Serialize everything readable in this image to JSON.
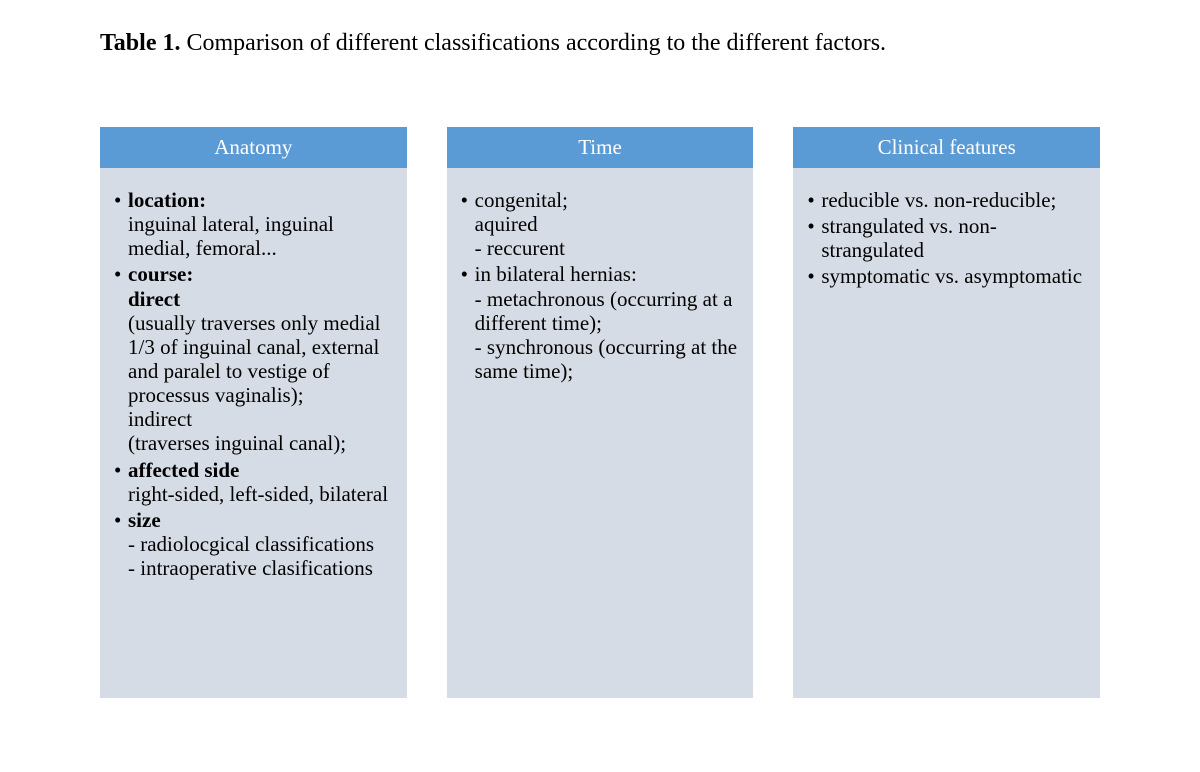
{
  "caption_bold": "Table 1.",
  "caption_rest": " Comparison of different classifications according to the different factors.",
  "header_color": "#5b9bd5",
  "body_color": "#d6dce5",
  "columns": [
    {
      "title": "Anatomy",
      "items": [
        {
          "label": "location:",
          "text": "inguinal lateral, inguinal medial, femoral..."
        },
        {
          "label": "course:",
          "text": "direct\n(usually traverses only medial 1/3 of inguinal canal, external and paralel to vestige of processus vaginalis);\nindirect\n(traverses inguinal canal);",
          "boldlines": [
            0,
            5
          ]
        },
        {
          "label": "affected side",
          "text": "right-sided, left-sided, bilateral"
        },
        {
          "label": "size",
          "text": "- radiolocgical classifications\n- intraoperative clasifications"
        }
      ]
    },
    {
      "title": "Time",
      "items": [
        {
          "label": "",
          "text": "congenital;\naquired\n- reccurent"
        },
        {
          "label": "",
          "text": "in bilateral hernias:\n- metachronous (occurring at a different time);\n- synchronous (occurring at the same time);"
        }
      ]
    },
    {
      "title": "Clinical features",
      "items": [
        {
          "label": "",
          "text": "reducible vs. non-reducible;"
        },
        {
          "label": "",
          "text": "strangulated vs. non-strangulated"
        },
        {
          "label": "",
          "text": "symptomatic vs. asymptomatic"
        }
      ]
    }
  ]
}
